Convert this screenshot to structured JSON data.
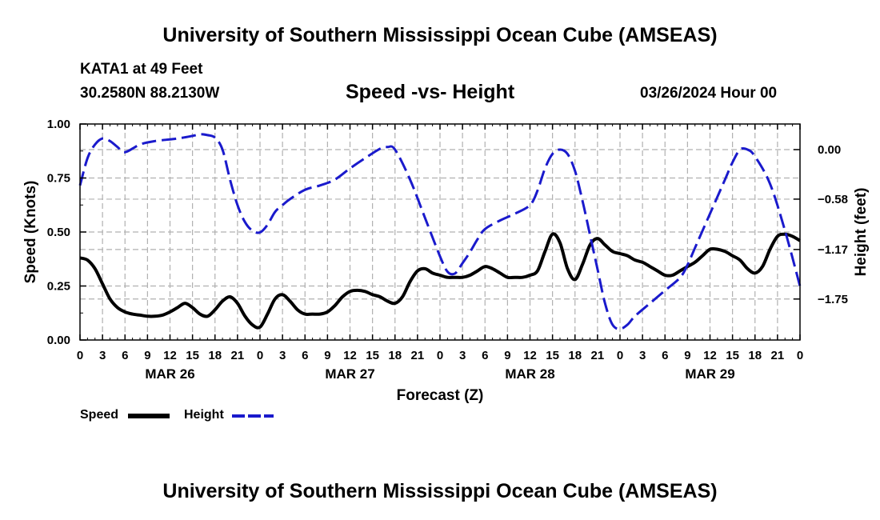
{
  "header": {
    "title": "University of Southern Mississippi Ocean Cube (AMSEAS)",
    "station": "KATA1 at 49 Feet",
    "coordinates": "30.2580N  88.2130W",
    "subtitle": "Speed -vs- Height",
    "datestamp": "03/26/2024 Hour 00"
  },
  "footer": {
    "title": "University of Southern Mississippi Ocean Cube (AMSEAS)"
  },
  "legend": {
    "speed_label": "Speed",
    "height_label": "Height"
  },
  "colors": {
    "speed": "#000000",
    "height": "#1a1acc",
    "grid": "#b0b0b0"
  },
  "chart_data": {
    "type": "line",
    "xlabel": "Forecast (Z)",
    "ylabel_left": "Speed (Knots)",
    "ylabel_right": "Height (feet)",
    "grid": true,
    "legend_position": "bottom-left",
    "x_unit": "forecast hour",
    "xlim": [
      0,
      96
    ],
    "x_ticks": [
      0,
      3,
      6,
      9,
      12,
      15,
      18,
      21,
      24,
      27,
      30,
      33,
      36,
      39,
      42,
      45,
      48,
      51,
      54,
      57,
      60,
      63,
      66,
      69,
      72,
      75,
      78,
      81,
      84,
      87,
      90,
      93,
      96
    ],
    "x_tick_labels": [
      "0",
      "3",
      "6",
      "9",
      "12",
      "15",
      "18",
      "21",
      "0",
      "3",
      "6",
      "9",
      "12",
      "15",
      "18",
      "21",
      "0",
      "3",
      "6",
      "9",
      "12",
      "15",
      "18",
      "21",
      "0",
      "3",
      "6",
      "9",
      "12",
      "15",
      "18",
      "21",
      "0"
    ],
    "date_labels": [
      {
        "x": 12,
        "label": "MAR 26"
      },
      {
        "x": 36,
        "label": "MAR 27"
      },
      {
        "x": 60,
        "label": "MAR 28"
      },
      {
        "x": 84,
        "label": "MAR 29"
      }
    ],
    "ylim_left": [
      0,
      1
    ],
    "y_ticks_left": [
      0,
      0.25,
      0.5,
      0.75,
      1.0
    ],
    "y_tick_labels_left": [
      "0.00",
      "0.25",
      "0.50",
      "0.75",
      "1.00"
    ],
    "ylim_right": [
      -2.23,
      0.3
    ],
    "y_ticks_right": [
      0.0,
      -0.58,
      -1.17,
      -1.75
    ],
    "y_tick_labels_right": [
      "0.00",
      "−0.58",
      "−1.17",
      "−1.75"
    ],
    "series": [
      {
        "name": "Speed",
        "axis": "left",
        "style": "solid",
        "x": [
          0,
          1,
          2,
          3,
          4,
          5,
          6,
          7,
          8,
          9,
          10,
          11,
          12,
          13,
          14,
          15,
          16,
          17,
          18,
          19,
          20,
          21,
          22,
          23,
          24,
          25,
          26,
          27,
          28,
          29,
          30,
          31,
          32,
          33,
          34,
          35,
          36,
          37,
          38,
          39,
          40,
          41,
          42,
          43,
          44,
          45,
          46,
          47,
          48,
          49,
          50,
          51,
          52,
          53,
          54,
          55,
          56,
          57,
          58,
          59,
          60,
          61,
          62,
          63,
          64,
          65,
          66,
          67,
          68,
          69,
          70,
          71,
          72,
          73,
          74,
          75,
          76,
          77,
          78,
          79,
          80,
          81,
          82,
          83,
          84,
          85,
          86,
          87,
          88,
          89,
          90,
          91,
          92,
          93,
          94,
          95,
          96
        ],
        "values": [
          0.38,
          0.37,
          0.33,
          0.26,
          0.19,
          0.15,
          0.13,
          0.12,
          0.115,
          0.11,
          0.11,
          0.115,
          0.13,
          0.15,
          0.17,
          0.15,
          0.12,
          0.11,
          0.14,
          0.18,
          0.2,
          0.17,
          0.11,
          0.07,
          0.06,
          0.12,
          0.19,
          0.21,
          0.18,
          0.14,
          0.12,
          0.12,
          0.12,
          0.13,
          0.16,
          0.2,
          0.225,
          0.23,
          0.225,
          0.21,
          0.2,
          0.18,
          0.17,
          0.2,
          0.27,
          0.32,
          0.33,
          0.31,
          0.3,
          0.29,
          0.29,
          0.29,
          0.3,
          0.32,
          0.34,
          0.33,
          0.31,
          0.29,
          0.29,
          0.29,
          0.3,
          0.32,
          0.41,
          0.49,
          0.45,
          0.33,
          0.28,
          0.35,
          0.44,
          0.47,
          0.44,
          0.41,
          0.4,
          0.39,
          0.37,
          0.36,
          0.34,
          0.32,
          0.3,
          0.3,
          0.32,
          0.34,
          0.36,
          0.39,
          0.42,
          0.42,
          0.41,
          0.39,
          0.37,
          0.33,
          0.31,
          0.34,
          0.42,
          0.48,
          0.49,
          0.48,
          0.46
        ]
      },
      {
        "name": "Height",
        "axis": "right",
        "style": "dashed",
        "x": [
          0,
          1,
          2,
          3,
          4,
          5,
          6,
          8,
          10,
          13,
          15,
          16,
          17,
          18,
          19,
          20,
          21,
          22,
          23,
          24,
          25,
          26,
          27,
          28,
          30,
          32,
          34,
          36,
          38,
          40,
          41,
          42,
          44,
          46,
          48,
          49,
          50,
          51,
          52,
          53,
          54,
          56,
          58,
          60,
          61,
          62,
          63,
          64,
          65,
          66,
          67,
          68,
          69,
          70,
          71,
          72,
          73,
          74,
          76,
          78,
          80,
          81,
          82,
          84,
          86,
          87,
          88,
          89,
          90,
          92,
          94,
          96
        ],
        "values": [
          -0.42,
          -0.1,
          0.06,
          0.13,
          0.1,
          0.03,
          -0.03,
          0.06,
          0.1,
          0.13,
          0.16,
          0.18,
          0.17,
          0.14,
          0.0,
          -0.35,
          -0.65,
          -0.85,
          -0.95,
          -0.97,
          -0.88,
          -0.73,
          -0.65,
          -0.58,
          -0.47,
          -0.42,
          -0.35,
          -0.22,
          -0.1,
          0.01,
          0.03,
          0.0,
          -0.35,
          -0.8,
          -1.25,
          -1.43,
          -1.45,
          -1.33,
          -1.2,
          -1.05,
          -0.93,
          -0.83,
          -0.75,
          -0.65,
          -0.48,
          -0.22,
          -0.05,
          0.0,
          -0.05,
          -0.25,
          -0.6,
          -1.0,
          -1.4,
          -1.8,
          -2.05,
          -2.1,
          -2.05,
          -1.95,
          -1.8,
          -1.65,
          -1.5,
          -1.35,
          -1.15,
          -0.75,
          -0.35,
          -0.15,
          0.0,
          0.0,
          -0.08,
          -0.4,
          -0.95,
          -1.6
        ]
      }
    ]
  }
}
